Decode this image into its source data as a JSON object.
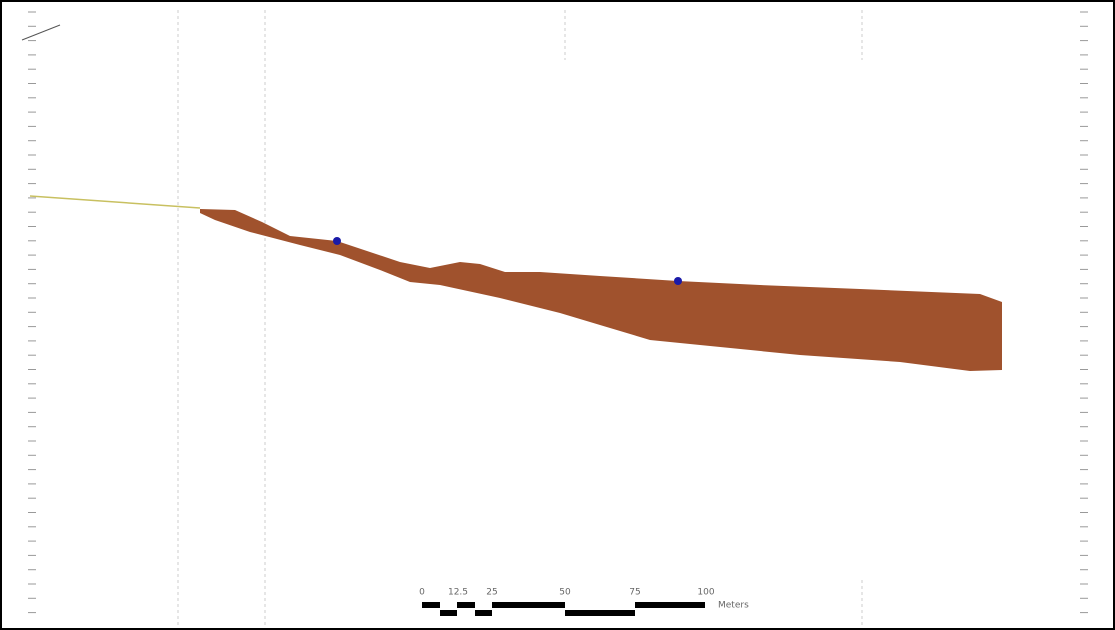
{
  "scale_bar": {
    "labels": [
      "0",
      "12.5",
      "25",
      "50",
      "75",
      "100"
    ],
    "unit": "Meters"
  }
}
